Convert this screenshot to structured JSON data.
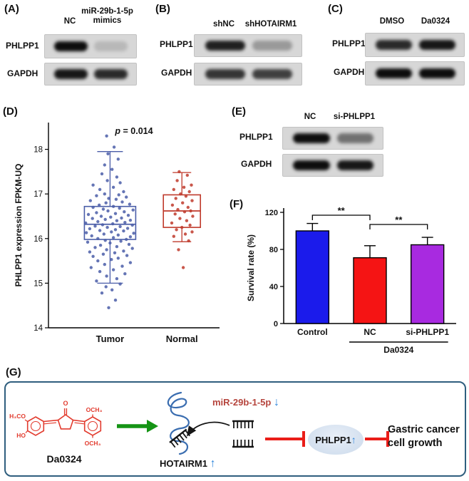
{
  "blots": {
    "A": {
      "label": "(A)",
      "cols": [
        "NC",
        "miR-29b-1-5p\nmimics"
      ],
      "rows": [
        "PHLPP1",
        "GAPDH"
      ],
      "bands": [
        [
          1,
          0.15
        ],
        [
          0.95,
          0.85
        ]
      ]
    },
    "B": {
      "label": "(B)",
      "cols": [
        "shNC",
        "shHOTAIRM1"
      ],
      "rows": [
        "PHLPP1",
        "GAPDH"
      ],
      "bands": [
        [
          0.9,
          0.3
        ],
        [
          0.8,
          0.75
        ]
      ]
    },
    "C": {
      "label": "(C)",
      "cols": [
        "DMSO",
        "Da0324"
      ],
      "rows": [
        "PHLPP1",
        "GAPDH"
      ],
      "bands": [
        [
          0.85,
          0.95
        ],
        [
          1,
          1
        ]
      ]
    },
    "E": {
      "label": "(E)",
      "cols": [
        "NC",
        "si-PHLPP1"
      ],
      "rows": [
        "PHLPP1",
        "GAPDH"
      ],
      "bands": [
        [
          1,
          0.5
        ],
        [
          1,
          0.95
        ]
      ]
    }
  },
  "panelD": {
    "label": "(D)"
  },
  "panelF": {
    "label": "(F)"
  },
  "panelG": {
    "label": "(G)",
    "molecule": "Da0324",
    "molecule_atoms": [
      "H₃CO",
      "HO",
      "O",
      "OCH₃",
      "OCH₃"
    ],
    "mirna": "miR-29b-1-5p",
    "lncrna": "HOTAIRM1",
    "target": "PHLPP1",
    "outcome_line1": "Gastric cancer",
    "outcome_line2": "cell growth",
    "up_arrow": "↑",
    "down_arrow": "↓"
  },
  "chart_data": [
    {
      "type": "scatter",
      "panel": "D",
      "ylabel": "PHLPP1 expression FPKM-UQ",
      "annotation": "p = 0.014",
      "ylim": [
        14,
        18.6
      ],
      "yticks": [
        14,
        15,
        16,
        17,
        18
      ],
      "categories": [
        "Tumor",
        "Normal"
      ],
      "colors": [
        "#4a5da8",
        "#bf3a2b"
      ],
      "box": {
        "Tumor": {
          "q1": 15.98,
          "median": 16.32,
          "q3": 16.72,
          "lo": 15.0,
          "hi": 17.95
        },
        "Normal": {
          "q1": 16.25,
          "median": 16.62,
          "q3": 16.98,
          "lo": 15.93,
          "hi": 17.48
        }
      },
      "points": {
        "Tumor": [
          [
            -0.02,
            14.45
          ],
          [
            0.08,
            14.62
          ],
          [
            -0.12,
            14.78
          ],
          [
            0.03,
            14.85
          ],
          [
            -0.06,
            14.92
          ],
          [
            0.15,
            14.98
          ],
          [
            -0.2,
            15.05
          ],
          [
            0.1,
            15.1
          ],
          [
            -0.05,
            15.16
          ],
          [
            0.22,
            15.21
          ],
          [
            -0.15,
            15.26
          ],
          [
            0.05,
            15.3
          ],
          [
            -0.28,
            15.35
          ],
          [
            0.18,
            15.38
          ],
          [
            -0.08,
            15.42
          ],
          [
            0.3,
            15.46
          ],
          [
            -0.18,
            15.5
          ],
          [
            0.02,
            15.53
          ],
          [
            0.12,
            15.56
          ],
          [
            -0.25,
            15.6
          ],
          [
            0.25,
            15.62
          ],
          [
            -0.1,
            15.65
          ],
          [
            0.07,
            15.68
          ],
          [
            -0.3,
            15.7
          ],
          [
            0.2,
            15.72
          ],
          [
            -0.05,
            15.75
          ],
          [
            0.33,
            15.78
          ],
          [
            -0.22,
            15.8
          ],
          [
            0.1,
            15.82
          ],
          [
            -0.14,
            15.85
          ],
          [
            0.28,
            15.87
          ],
          [
            0,
            15.9
          ],
          [
            -0.33,
            15.92
          ],
          [
            0.16,
            15.94
          ],
          [
            -0.07,
            15.96
          ],
          [
            0.24,
            15.98
          ],
          [
            -0.18,
            16.0
          ],
          [
            0.05,
            16.02
          ],
          [
            0.3,
            16.04
          ],
          [
            -0.27,
            16.06
          ],
          [
            0.12,
            16.08
          ],
          [
            -0.09,
            16.1
          ],
          [
            0.35,
            16.12
          ],
          [
            -0.35,
            16.13
          ],
          [
            0.02,
            16.15
          ],
          [
            0.2,
            16.17
          ],
          [
            -0.15,
            16.18
          ],
          [
            0.08,
            16.2
          ],
          [
            -0.3,
            16.22
          ],
          [
            0.26,
            16.23
          ],
          [
            -0.04,
            16.25
          ],
          [
            0.15,
            16.27
          ],
          [
            -0.22,
            16.28
          ],
          [
            0.33,
            16.3
          ],
          [
            -0.11,
            16.31
          ],
          [
            0.04,
            16.33
          ],
          [
            -0.36,
            16.35
          ],
          [
            0.22,
            16.36
          ],
          [
            -0.18,
            16.38
          ],
          [
            0.1,
            16.4
          ],
          [
            0.3,
            16.41
          ],
          [
            -0.07,
            16.43
          ],
          [
            -0.26,
            16.45
          ],
          [
            0.17,
            16.46
          ],
          [
            0.01,
            16.48
          ],
          [
            -0.13,
            16.5
          ],
          [
            0.27,
            16.52
          ],
          [
            -0.32,
            16.54
          ],
          [
            0.08,
            16.56
          ],
          [
            -0.2,
            16.58
          ],
          [
            0.21,
            16.6
          ],
          [
            -0.03,
            16.62
          ],
          [
            0.34,
            16.64
          ],
          [
            -0.1,
            16.66
          ],
          [
            0.14,
            16.68
          ],
          [
            -0.25,
            16.7
          ],
          [
            0.05,
            16.72
          ],
          [
            -0.16,
            16.75
          ],
          [
            0.29,
            16.77
          ],
          [
            -0.06,
            16.8
          ],
          [
            0.18,
            16.82
          ],
          [
            -0.29,
            16.85
          ],
          [
            0.09,
            16.88
          ],
          [
            -0.02,
            16.9
          ],
          [
            0.24,
            16.93
          ],
          [
            -0.2,
            16.96
          ],
          [
            0.13,
            16.98
          ],
          [
            -0.08,
            17.0
          ],
          [
            0.2,
            17.05
          ],
          [
            -0.15,
            17.1
          ],
          [
            0.05,
            17.15
          ],
          [
            -0.25,
            17.2
          ],
          [
            0.15,
            17.25
          ],
          [
            -0.04,
            17.3
          ],
          [
            0.1,
            17.38
          ],
          [
            -0.12,
            17.45
          ],
          [
            0.03,
            17.55
          ],
          [
            -0.08,
            17.65
          ],
          [
            0.12,
            17.78
          ],
          [
            -0.03,
            17.9
          ],
          [
            0.06,
            18.05
          ],
          [
            -0.05,
            18.3
          ]
        ],
        "Normal": [
          [
            0.02,
            15.35
          ],
          [
            -0.05,
            15.75
          ],
          [
            0.1,
            15.95
          ],
          [
            -0.12,
            16.05
          ],
          [
            0.05,
            16.1
          ],
          [
            0.15,
            16.15
          ],
          [
            -0.08,
            16.2
          ],
          [
            0,
            16.25
          ],
          [
            0.12,
            16.3
          ],
          [
            -0.15,
            16.35
          ],
          [
            0.07,
            16.4
          ],
          [
            -0.03,
            16.45
          ],
          [
            0.16,
            16.5
          ],
          [
            -0.1,
            16.55
          ],
          [
            0.04,
            16.6
          ],
          [
            0.13,
            16.62
          ],
          [
            -0.06,
            16.65
          ],
          [
            0.09,
            16.7
          ],
          [
            -0.14,
            16.75
          ],
          [
            0.01,
            16.8
          ],
          [
            0.15,
            16.85
          ],
          [
            -0.09,
            16.9
          ],
          [
            0.06,
            16.95
          ],
          [
            -0.02,
            17.0
          ],
          [
            0.11,
            17.05
          ],
          [
            -0.12,
            17.1
          ],
          [
            0.03,
            17.15
          ],
          [
            0.14,
            17.2
          ],
          [
            -0.07,
            17.3
          ],
          [
            0.08,
            17.42
          ],
          [
            -0.04,
            17.5
          ]
        ]
      }
    },
    {
      "type": "bar",
      "panel": "F",
      "ylabel": "Survival rate (%)",
      "ylim": [
        0,
        120
      ],
      "yticks": [
        0,
        40,
        80,
        120
      ],
      "categories": [
        "Control",
        "NC",
        "si-PHLPP1"
      ],
      "values": [
        100,
        71,
        85
      ],
      "errors": [
        8,
        13,
        8
      ],
      "colors": [
        "#1b1beb",
        "#f51414",
        "#a82ae0"
      ],
      "group_label": "Da0324",
      "significance": [
        {
          "from": 0,
          "to": 1,
          "label": "**"
        },
        {
          "from": 1,
          "to": 2,
          "label": "**"
        }
      ]
    }
  ]
}
